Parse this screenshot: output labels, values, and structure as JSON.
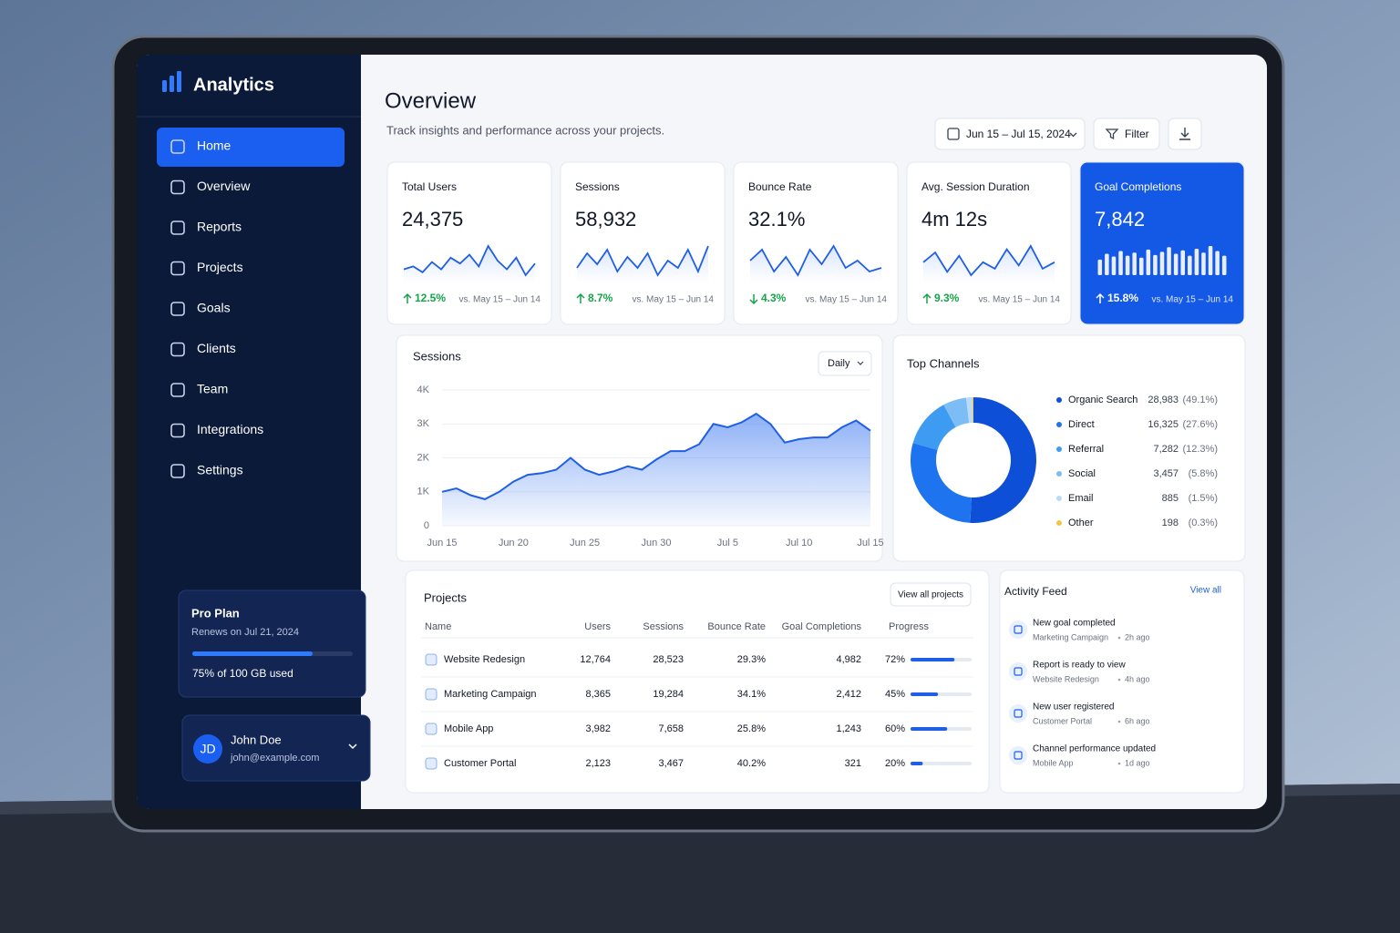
{
  "sidebar": {
    "brand": "Analytics",
    "nav": [
      "Home",
      "Overview",
      "Reports",
      "Projects",
      "Goals",
      "Clients",
      "Team",
      "Integrations",
      "Settings"
    ],
    "plan": {
      "title": "Pro Plan",
      "renews": "Renews on Jul 21, 2024",
      "usage": "75% of 100 GB used",
      "progress": 75
    },
    "user": {
      "initials": "JD",
      "name": "John Doe",
      "email": "john@example.com"
    }
  },
  "header": {
    "title": "Overview",
    "subtitle": "Track insights and performance across your projects.",
    "date_range": "Jun 15 – Jul 15, 2024",
    "filter": "Filter"
  },
  "kpis": [
    {
      "label": "Total Users",
      "value": "24,375",
      "change": "12.5%",
      "direction": "up",
      "comparison": "vs. May 15 – Jun 14",
      "sparkline": [
        50,
        52,
        48,
        55,
        50,
        58,
        54,
        60,
        52,
        66,
        56,
        50,
        58,
        46,
        54
      ]
    },
    {
      "label": "Sessions",
      "value": "58,932",
      "change": "8.7%",
      "direction": "up",
      "comparison": "vs. May 15 – Jun 14",
      "sparkline": [
        50,
        58,
        52,
        60,
        48,
        56,
        50,
        58,
        46,
        54,
        50,
        60,
        48,
        62
      ]
    },
    {
      "label": "Bounce Rate",
      "value": "32.1%",
      "change": "4.3%",
      "direction": "down",
      "comparison": "vs. May 15 – Jun 14",
      "sparkline": [
        52,
        58,
        46,
        54,
        44,
        58,
        50,
        60,
        48,
        52,
        46,
        48
      ]
    },
    {
      "label": "Avg. Session Duration",
      "value": "4m 12s",
      "change": "9.3%",
      "direction": "up",
      "comparison": "vs. May 15 – Jun 14",
      "sparkline": [
        50,
        56,
        44,
        54,
        42,
        50,
        46,
        58,
        48,
        60,
        46,
        50
      ]
    },
    {
      "label": "Goal Completions",
      "value": "7,842",
      "change": "15.8%",
      "direction": "up",
      "comparison": "vs. May 15 – Jun 14",
      "bars": [
        40,
        55,
        48,
        62,
        50,
        58,
        45,
        66,
        52,
        60,
        72,
        55,
        64,
        50,
        68,
        58,
        75,
        62,
        50
      ]
    }
  ],
  "sessions_chart": {
    "type": "area",
    "title": "Sessions",
    "period": "Daily",
    "categories": [
      "Jun 15",
      null,
      null,
      null,
      null,
      "Jun 20",
      null,
      null,
      null,
      null,
      "Jun 25",
      null,
      null,
      null,
      null,
      "Jun 30",
      null,
      null,
      null,
      null,
      "Jul 5",
      null,
      null,
      null,
      null,
      "Jul 10",
      null,
      null,
      null,
      null,
      "Jul 15"
    ],
    "values": [
      1000,
      1100,
      900,
      780,
      1000,
      1300,
      1500,
      1550,
      1650,
      2000,
      1650,
      1500,
      1600,
      1750,
      1650,
      1950,
      2200,
      2200,
      2400,
      3000,
      2900,
      3050,
      3300,
      3000,
      2450,
      2550,
      2600,
      2600,
      2900,
      3100,
      2800
    ],
    "color": "#1f5fe6",
    "ylim": [
      0,
      4000
    ],
    "yticks": [
      {
        "value": 0,
        "label": "0"
      },
      {
        "value": 1000,
        "label": "1K"
      },
      {
        "value": 2000,
        "label": "2K"
      },
      {
        "value": 3000,
        "label": "3K"
      },
      {
        "value": 4000,
        "label": "4K"
      }
    ],
    "grid": true
  },
  "channels": {
    "type": "donut",
    "title": "Top Channels",
    "categories": [
      "Organic Search",
      "Direct",
      "Referral",
      "Social",
      "Email",
      "Other"
    ],
    "values": [
      28983,
      16325,
      7282,
      3457,
      885,
      198
    ],
    "value_labels": [
      "28,983",
      "16,325",
      "7,282",
      "3,457",
      "885",
      "198"
    ],
    "shares": [
      49.1,
      27.6,
      12.3,
      5.8,
      1.5,
      0.3
    ],
    "share_labels": [
      "(49.1%)",
      "(27.6%)",
      "(12.3%)",
      "(5.8%)",
      "(1.5%)",
      "(0.3%)"
    ],
    "colors": [
      "#0e4fd8",
      "#1e74ee",
      "#3d9bf2",
      "#7cbdf5",
      "#b9dbfa",
      "#f5c542"
    ]
  },
  "projects": {
    "title": "Projects",
    "button": "View all projects",
    "columns": [
      "Name",
      "Users",
      "Sessions",
      "Bounce Rate",
      "Goal Completions",
      "Progress"
    ],
    "rows": [
      {
        "name": "Website Redesign",
        "users": "12,764",
        "sessions": "28,523",
        "bounce_rate": "29.3%",
        "goal_completions": "4,982",
        "progress": 72,
        "progress_label": "72%"
      },
      {
        "name": "Marketing Campaign",
        "users": "8,365",
        "sessions": "19,284",
        "bounce_rate": "34.1%",
        "goal_completions": "2,412",
        "progress": 45,
        "progress_label": "45%"
      },
      {
        "name": "Mobile App",
        "users": "3,982",
        "sessions": "7,658",
        "bounce_rate": "25.8%",
        "goal_completions": "1,243",
        "progress": 60,
        "progress_label": "60%"
      },
      {
        "name": "Customer Portal",
        "users": "2,123",
        "sessions": "3,467",
        "bounce_rate": "40.2%",
        "goal_completions": "321",
        "progress": 20,
        "progress_label": "20%"
      }
    ]
  },
  "activity": {
    "title": "Activity Feed",
    "link": "View all",
    "items": [
      {
        "title": "New goal completed",
        "project": "Marketing Campaign",
        "time": "2h ago"
      },
      {
        "title": "Report is ready to view",
        "project": "Website Redesign",
        "time": "4h ago"
      },
      {
        "title": "New user registered",
        "project": "Customer Portal",
        "time": "6h ago"
      },
      {
        "title": "Channel performance updated",
        "project": "Mobile App",
        "time": "1d ago"
      }
    ]
  }
}
